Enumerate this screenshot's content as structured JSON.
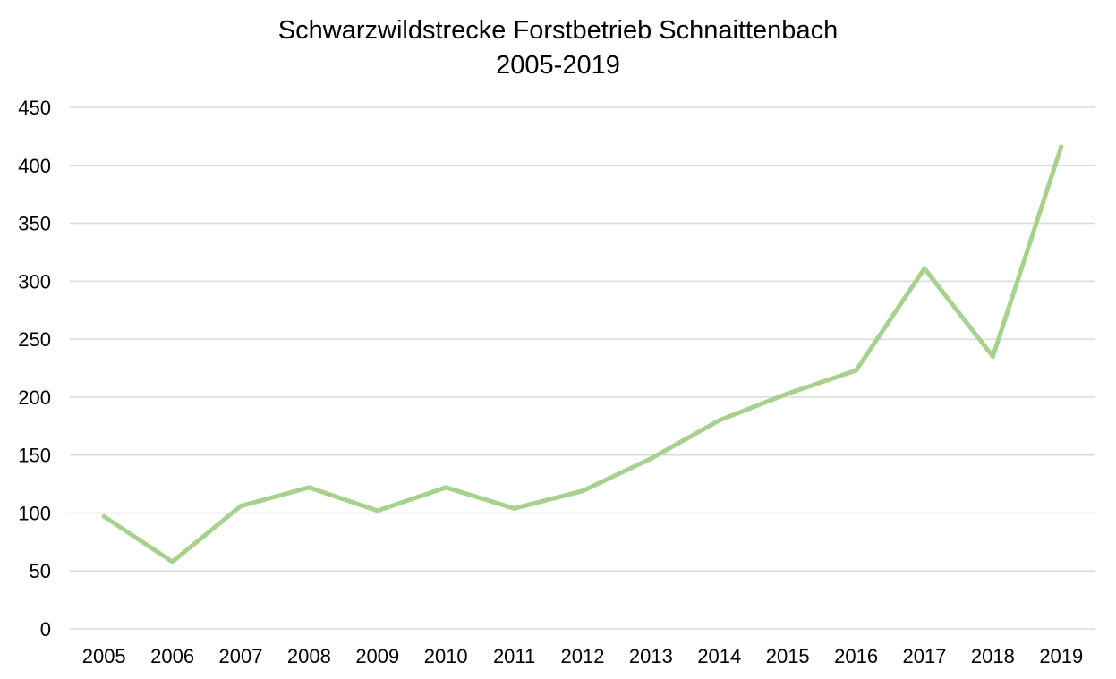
{
  "chart_data": {
    "type": "line",
    "title": "Schwarzwildstrecke Forstbetrieb Schnaittenbach",
    "subtitle": "2005-2019",
    "xlabel": "",
    "ylabel": "",
    "ylim": [
      0,
      450
    ],
    "y_ticks": [
      0,
      50,
      100,
      150,
      200,
      250,
      300,
      350,
      400,
      450
    ],
    "grid": true,
    "legend": "none",
    "categories": [
      "2005",
      "2006",
      "2007",
      "2008",
      "2009",
      "2010",
      "2011",
      "2012",
      "2013",
      "2014",
      "2015",
      "2016",
      "2017",
      "2018",
      "2019"
    ],
    "series": [
      {
        "color": "#a9d18e",
        "values": [
          97,
          58,
          106,
          122,
          102,
          122,
          104,
          119,
          147,
          180,
          203,
          223,
          311,
          235,
          416
        ]
      }
    ]
  }
}
